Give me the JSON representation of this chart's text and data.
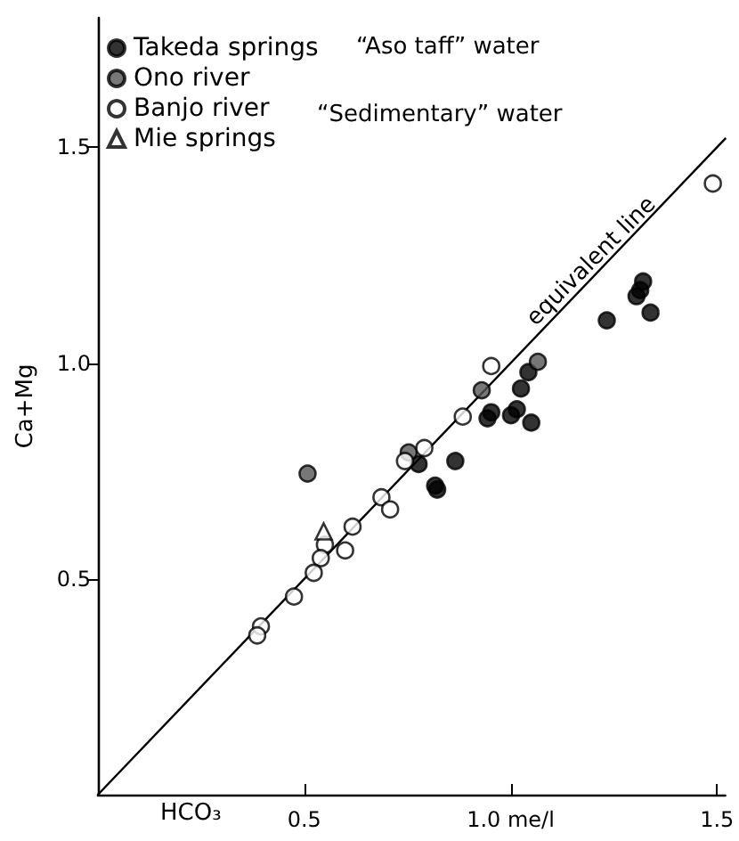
{
  "chart_data": {
    "type": "scatter",
    "xlabel": "HCO₃",
    "ylabel": "Ca+Mg",
    "xlim": [
      0,
      1.52
    ],
    "ylim": [
      0,
      1.8
    ],
    "xticks": [
      0.5,
      {
        "value": 1.0,
        "label": "1.0 me/l"
      },
      1.5
    ],
    "yticks": [
      0.5,
      {
        "value": 1.0,
        "label": "1.0"
      },
      1.5
    ],
    "grid": false,
    "legend": "top left",
    "annotations": [
      "equivalent line",
      "“Aso taff” water",
      "“Sedimentary” water"
    ],
    "series": [
      {
        "name": "Takeda springs",
        "color": "#000000",
        "marker": "circle",
        "x": [
          1.321,
          1.305,
          1.314,
          1.339,
          1.233,
          0.866,
          0.817,
          0.822,
          0.953,
          1.001,
          1.015,
          1.05,
          1.025,
          1.043,
          0.777,
          0.944
        ],
        "values": [
          1.189,
          1.155,
          1.169,
          1.117,
          1.099,
          0.773,
          0.716,
          0.707,
          0.886,
          0.879,
          0.893,
          0.862,
          0.941,
          0.979,
          0.766,
          0.872
        ]
      },
      {
        "name": "Ono river",
        "color": "#555555",
        "marker": "circle",
        "x": [
          0.508,
          0.93,
          1.066,
          0.753
        ],
        "values": [
          0.744,
          0.937,
          1.003,
          0.793
        ]
      },
      {
        "name": "Banjo river",
        "color": "#ffffff",
        "marker": "circle",
        "x": [
          0.953,
          0.884,
          0.791,
          0.744,
          0.687,
          0.708,
          0.617,
          0.599,
          0.55,
          0.54,
          0.523,
          0.475,
          0.395,
          0.386,
          1.49
        ],
        "values": [
          0.993,
          0.876,
          0.803,
          0.773,
          0.689,
          0.661,
          0.621,
          0.566,
          0.579,
          0.548,
          0.514,
          0.459,
          0.39,
          0.369,
          1.416
        ]
      },
      {
        "name": "Mie springs",
        "color": "#ffffff",
        "marker": "triangle",
        "x": [
          0.547
        ],
        "values": [
          0.61
        ]
      },
      {
        "type": "line",
        "color": "#000000",
        "marker": "none",
        "line_style": "solid",
        "x": [
          0,
          1.52
        ],
        "values": [
          0,
          1.52
        ]
      }
    ]
  }
}
